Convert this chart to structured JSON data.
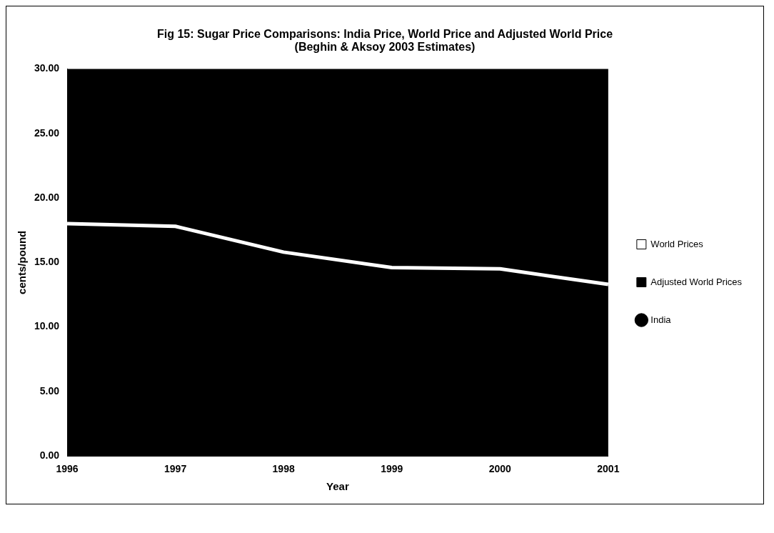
{
  "chart_data": {
    "type": "line",
    "title": "Fig 15: Sugar Price Comparisons: India Price, World Price and Adjusted World Price  (Beghin & Aksoy 2003 Estimates)",
    "xlabel": "Year",
    "ylabel": "cents/pound",
    "categories": [
      "1996",
      "1997",
      "1998",
      "1999",
      "2000",
      "2001"
    ],
    "series": [
      {
        "name": "World Prices",
        "color": "#ffffff",
        "values": [
          18.0,
          17.8,
          15.8,
          14.6,
          14.5,
          13.3
        ],
        "marker": "none"
      },
      {
        "name": "Adjusted World Prices",
        "color": "#000000",
        "values": [
          null,
          null,
          null,
          null,
          null,
          null
        ],
        "marker": "none"
      },
      {
        "name": "India",
        "type": "scatter",
        "color": "#000000",
        "values": [
          null,
          null,
          null,
          null,
          null,
          null
        ],
        "marker": "circle"
      }
    ],
    "ylim": [
      0,
      30
    ],
    "yticks": [
      {
        "value": 0,
        "label": "0.00"
      },
      {
        "value": 5,
        "label": "5.00"
      },
      {
        "value": 10,
        "label": "10.00"
      },
      {
        "value": 15,
        "label": "15.00"
      },
      {
        "value": 20,
        "label": "20.00"
      },
      {
        "value": 25,
        "label": "25.00"
      },
      {
        "value": 30,
        "label": "30.00"
      }
    ],
    "grid": false,
    "legend": "right"
  }
}
